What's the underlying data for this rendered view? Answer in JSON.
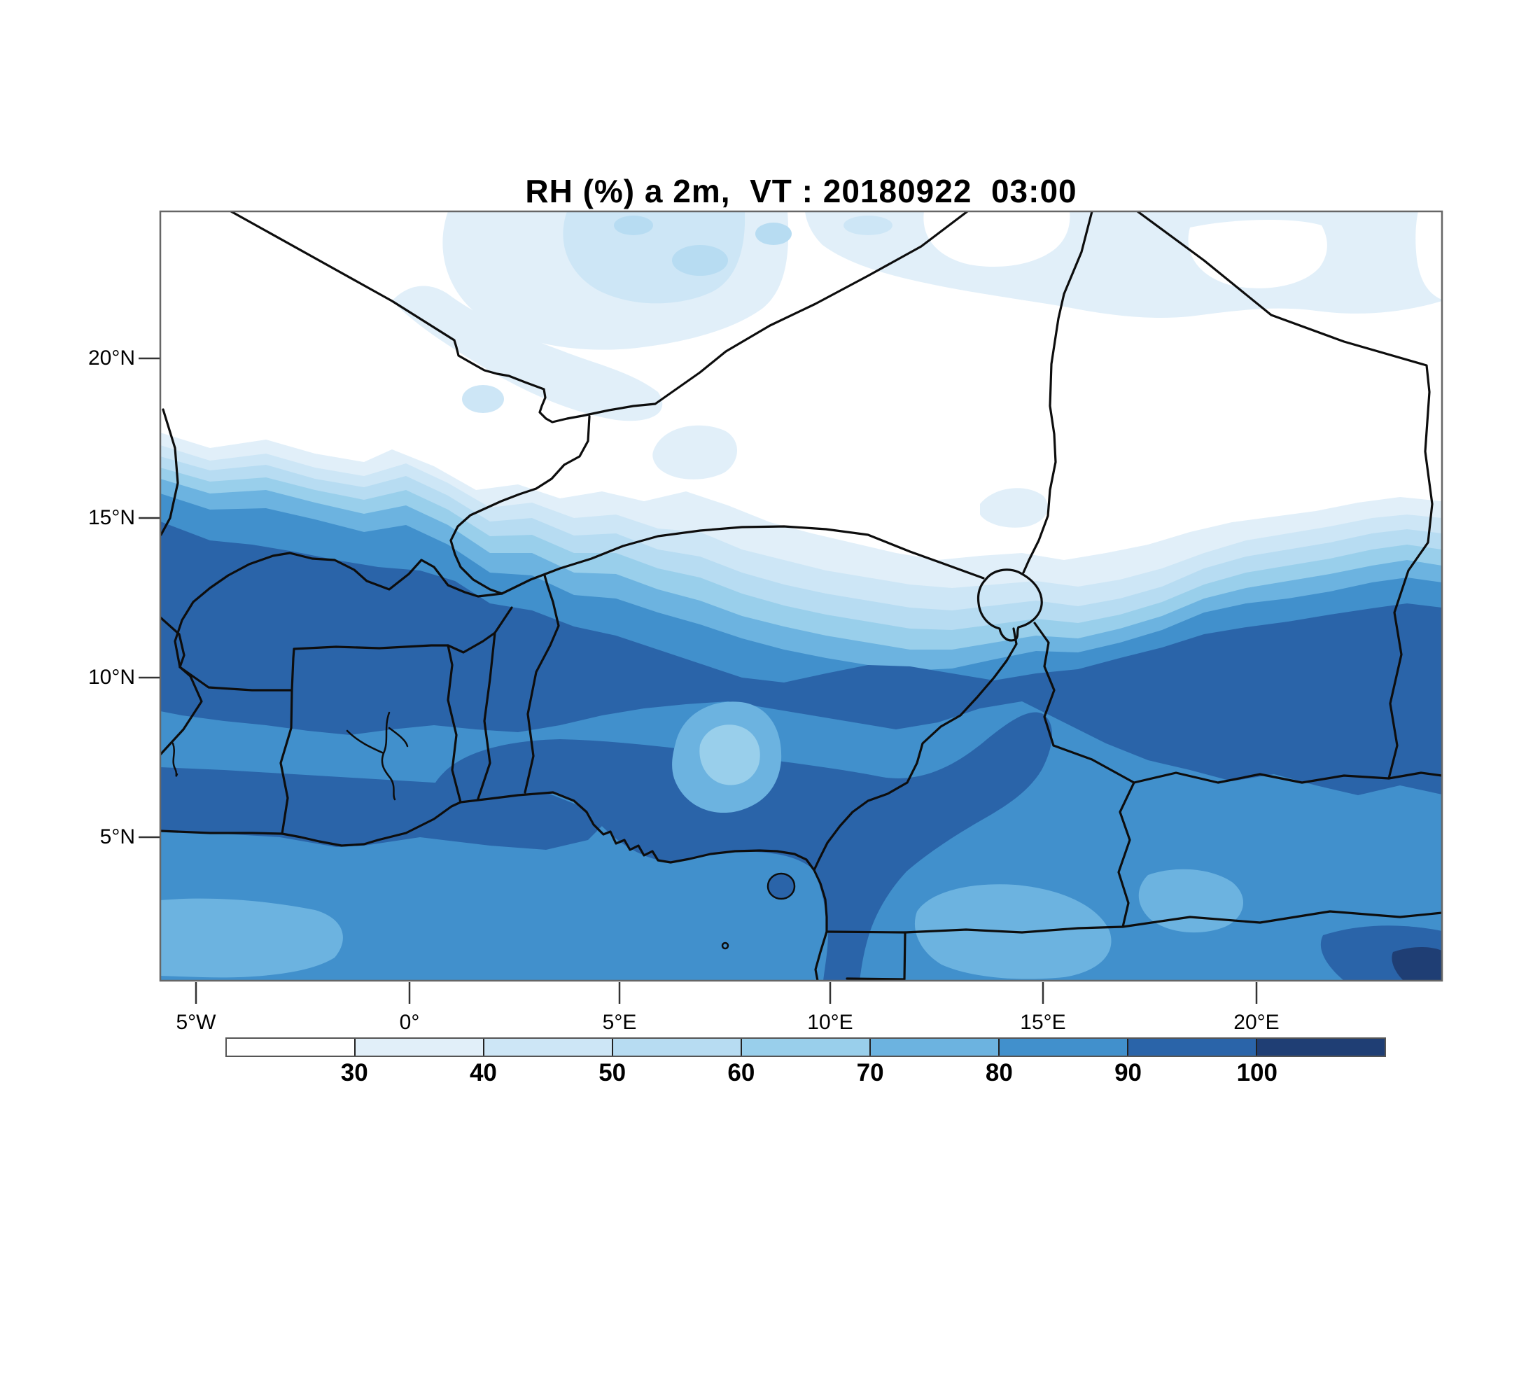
{
  "title": "RH (%) a 2m,  VT : 20180922  03:00",
  "y_axis": {
    "tick_labels": [
      "20°N",
      "15°N",
      "10°N",
      "5°N"
    ]
  },
  "x_axis": {
    "tick_labels": [
      "5°W",
      "0°",
      "5°E",
      "10°E",
      "15°E",
      "20°E"
    ]
  },
  "colorbar": {
    "tick_labels": [
      "30",
      "40",
      "50",
      "60",
      "70",
      "80",
      "90",
      "100"
    ],
    "colors": [
      "#ffffff",
      "#e1eff9",
      "#cde6f6",
      "#b7dcf2",
      "#99cfeb",
      "#6cb3e0",
      "#4190cc",
      "#2a64a9",
      "#1f3e74"
    ],
    "orientation": "horizontal"
  },
  "palette": {
    "lt30": "#ffffff",
    "b30_40": "#e1eff9",
    "b40_50": "#cde6f6",
    "b50_60": "#b7dcf2",
    "b60_70": "#99cfeb",
    "b70_80": "#6cb3e0",
    "b80_90": "#4190cc",
    "b90_100": "#2a64a9",
    "gt100": "#1f3e74",
    "frame": "#666666",
    "tick": "#333333",
    "border_line": "#0d0d0d",
    "background": "#ffffff"
  },
  "chart_data": {
    "type": "heatmap",
    "variant": "filled-contour-weather-map",
    "title": "RH (%) a 2m,  VT : 20180922  03:00",
    "variable": "RH (%) a 2m",
    "valid_time": "20180922 03:00",
    "xlabel": "",
    "ylabel": "",
    "x_ticks": [
      "5°W",
      "0°",
      "5°E",
      "10°E",
      "15°E",
      "20°E"
    ],
    "y_ticks": [
      "20°N",
      "15°N",
      "10°N",
      "5°N"
    ],
    "approx_extent": {
      "lon_min": -5.8,
      "lon_max": 24.4,
      "lat_min": 0.5,
      "lat_max": 24.6
    },
    "contour_levels": [
      30,
      40,
      50,
      60,
      70,
      80,
      90,
      100
    ],
    "level_colors": [
      "#ffffff",
      "#e1eff9",
      "#cde6f6",
      "#b7dcf2",
      "#99cfeb",
      "#6cb3e0",
      "#4190cc",
      "#2a64a9",
      "#1f3e74"
    ],
    "legend_position": "bottom",
    "grid": false,
    "field_description": "Relative humidity at 2 m: below 30% (white) over the Sahara in the north, sharp zonal gradient near 14-16N through 30-80% bands, a dark 90-100% belt near 9-12N, 80-90% over the Gulf of Guinea with 70-80% patches, darkest values over southern Nigeria, Cameroon and the south-east",
    "approx_rh_grid": {
      "lons": [
        "5°W",
        "0°",
        "5°E",
        "10°E",
        "15°E",
        "20°E"
      ],
      "lats": [
        "20°N",
        "15°N",
        "10°N",
        "5°N"
      ],
      "values_percent": [
        [
          25,
          25,
          25,
          25,
          25,
          25
        ],
        [
          65,
          45,
          40,
          35,
          35,
          35
        ],
        [
          95,
          95,
          90,
          80,
          85,
          90
        ],
        [
          85,
          85,
          85,
          85,
          90,
          85
        ]
      ]
    },
    "map_overlays": [
      "country borders",
      "coastline Gulf of Guinea",
      "Lake Chad",
      "Lake Volta",
      "Bioko island"
    ]
  }
}
